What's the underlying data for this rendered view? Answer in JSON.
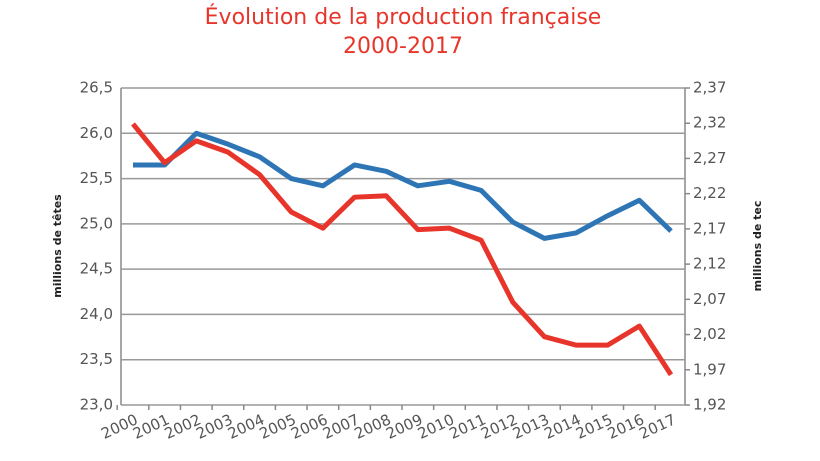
{
  "chart_data": {
    "type": "line",
    "title": "Évolution de la production française",
    "subtitle": "2000-2017",
    "y_label": "millions de têtes",
    "y2_label": "millions de tec",
    "categories": [
      "2000",
      "2001",
      "2002",
      "2003",
      "2004",
      "2005",
      "2006",
      "2007",
      "2008",
      "2009",
      "2010",
      "2011",
      "2012",
      "2013",
      "2014",
      "2015",
      "2016",
      "2017"
    ],
    "series": [
      {
        "color": "#2e75b6",
        "values": [
          25.65,
          25.65,
          26.0,
          25.88,
          25.74,
          25.5,
          25.42,
          25.65,
          25.58,
          25.42,
          25.47,
          25.37,
          25.02,
          24.84,
          24.9,
          25.09,
          25.26,
          24.92
        ]
      },
      {
        "color": "#e8352b",
        "axis": "y2",
        "values": [
          2.319,
          2.264,
          2.295,
          2.279,
          2.247,
          2.194,
          2.171,
          2.215,
          2.217,
          2.169,
          2.171,
          2.154,
          2.066,
          2.017,
          2.005,
          2.005,
          2.032,
          1.963
        ]
      }
    ],
    "ylim": [
      23.0,
      26.5
    ],
    "yticks": [
      {
        "value": 23.0,
        "label": "23,0"
      },
      {
        "value": 23.5,
        "label": "23,5"
      },
      {
        "value": 24.0,
        "label": "24,0"
      },
      {
        "value": 24.5,
        "label": "24,5"
      },
      {
        "value": 25.0,
        "label": "25,0"
      },
      {
        "value": 25.5,
        "label": "25,5"
      },
      {
        "value": 26.0,
        "label": "26,0"
      },
      {
        "value": 26.5,
        "label": "26,5"
      }
    ],
    "y2lim": [
      1.92,
      2.37
    ],
    "y2ticks": [
      {
        "value": 1.92,
        "label": "1,92"
      },
      {
        "value": 1.97,
        "label": "1,97"
      },
      {
        "value": 2.02,
        "label": "2,02"
      },
      {
        "value": 2.07,
        "label": "2,07"
      },
      {
        "value": 2.12,
        "label": "2,12"
      },
      {
        "value": 2.17,
        "label": "2,17"
      },
      {
        "value": 2.22,
        "label": "2,22"
      },
      {
        "value": 2.27,
        "label": "2,27"
      },
      {
        "value": 2.32,
        "label": "2,32"
      },
      {
        "value": 2.37,
        "label": "2,37"
      }
    ],
    "grid": true
  }
}
